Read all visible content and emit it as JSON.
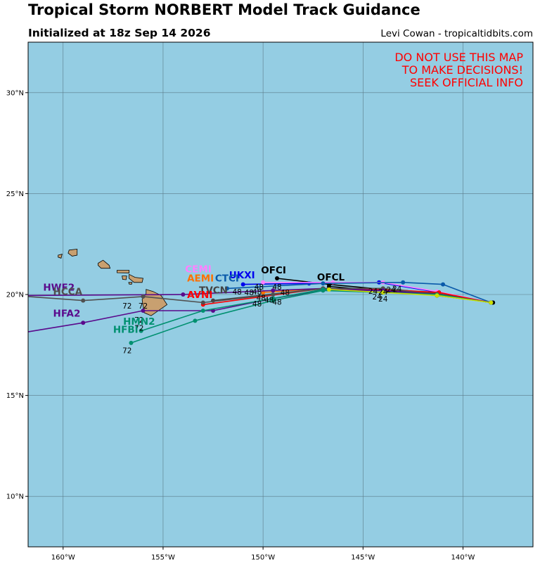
{
  "title": "Tropical Storm NORBERT Model Track Guidance",
  "subtitle": "Initialized at 18z Sep 14 2026",
  "credit": "Levi Cowan - tropicaltidbits.com",
  "warning": [
    "DO NOT USE THIS MAP",
    "TO MAKE DECISIONS!",
    "SEEK OFFICIAL INFO"
  ],
  "colors": {
    "ocean": "#94cde3",
    "land": "#c8a070",
    "warning": "#ff0000"
  },
  "map": {
    "lon_range": [
      -161.75,
      -136.5
    ],
    "lat_range": [
      7.5,
      32.5
    ],
    "lon_ticks": [
      -160,
      -155,
      -150,
      -145,
      -140
    ],
    "lon_tick_labels": [
      "160°W",
      "155°W",
      "150°W",
      "145°W",
      "140°W"
    ],
    "lat_ticks": [
      10,
      15,
      20,
      25,
      30
    ],
    "lat_tick_labels": [
      "10°N",
      "15°N",
      "20°N",
      "25°N",
      "30°N"
    ],
    "grid": true
  },
  "islands": [
    {
      "name": "Kauai",
      "points": [
        [
          -159.7,
          22.2
        ],
        [
          -159.3,
          22.25
        ],
        [
          -159.3,
          21.95
        ],
        [
          -159.55,
          21.9
        ],
        [
          -159.75,
          22.05
        ]
      ]
    },
    {
      "name": "Niihau",
      "points": [
        [
          -160.25,
          21.95
        ],
        [
          -160.05,
          22.0
        ],
        [
          -160.1,
          21.8
        ],
        [
          -160.25,
          21.85
        ]
      ]
    },
    {
      "name": "Oahu",
      "points": [
        [
          -158.25,
          21.55
        ],
        [
          -158.0,
          21.7
        ],
        [
          -157.7,
          21.45
        ],
        [
          -157.65,
          21.3
        ],
        [
          -158.1,
          21.3
        ],
        [
          -158.25,
          21.45
        ]
      ]
    },
    {
      "name": "Molokai",
      "points": [
        [
          -157.3,
          21.2
        ],
        [
          -156.7,
          21.2
        ],
        [
          -156.7,
          21.07
        ],
        [
          -157.3,
          21.08
        ]
      ]
    },
    {
      "name": "Lanai",
      "points": [
        [
          -157.05,
          20.92
        ],
        [
          -156.82,
          20.92
        ],
        [
          -156.85,
          20.73
        ],
        [
          -157.02,
          20.75
        ]
      ]
    },
    {
      "name": "Kahoolawe",
      "points": [
        [
          -156.72,
          20.6
        ],
        [
          -156.55,
          20.6
        ],
        [
          -156.58,
          20.5
        ],
        [
          -156.7,
          20.52
        ]
      ]
    },
    {
      "name": "Maui",
      "points": [
        [
          -156.7,
          21.0
        ],
        [
          -156.4,
          20.85
        ],
        [
          -156.0,
          20.8
        ],
        [
          -156.05,
          20.6
        ],
        [
          -156.45,
          20.6
        ],
        [
          -156.7,
          20.8
        ]
      ]
    },
    {
      "name": "Hawaii",
      "points": [
        [
          -155.85,
          20.25
        ],
        [
          -155.5,
          20.15
        ],
        [
          -155.1,
          19.95
        ],
        [
          -154.8,
          19.5
        ],
        [
          -155.6,
          18.95
        ],
        [
          -155.95,
          19.1
        ],
        [
          -156.05,
          19.75
        ],
        [
          -155.85,
          20.05
        ]
      ]
    }
  ],
  "tracks": [
    {
      "name": "OFCI",
      "color": "#000000",
      "points": [
        [
          -138.5,
          19.6
        ],
        [
          -141.3,
          20.0
        ],
        [
          -146.7,
          20.5
        ],
        [
          -149.3,
          20.8
        ]
      ]
    },
    {
      "name": "OFCL",
      "color": "#000000",
      "points": [
        [
          -138.5,
          19.6
        ],
        [
          -141.3,
          19.95
        ],
        [
          -146.7,
          20.4
        ]
      ]
    },
    {
      "name": "UKXI",
      "color": "#0000ee",
      "points": [
        [
          -138.6,
          19.6
        ],
        [
          -141.2,
          20.1
        ],
        [
          -144.2,
          20.6
        ],
        [
          -147.7,
          20.55
        ],
        [
          -151.0,
          20.5
        ]
      ]
    },
    {
      "name": "CEMI",
      "color": "#ff80ff",
      "points": [
        [
          -138.6,
          19.6
        ],
        [
          -141.3,
          20.15
        ],
        [
          -144.0,
          20.6
        ],
        [
          -146.5,
          20.6
        ],
        [
          -150.0,
          20.6
        ]
      ]
    },
    {
      "name": "AEMI",
      "color": "#ff7000",
      "points": [
        [
          -138.6,
          19.6
        ],
        [
          -141.3,
          20.05
        ],
        [
          -144.0,
          20.3
        ],
        [
          -147.0,
          20.3
        ],
        [
          -150.0,
          20.1
        ]
      ]
    },
    {
      "name": "CTCI",
      "color": "#0a5aaa",
      "points": [
        [
          -138.6,
          19.6
        ],
        [
          -141.0,
          20.5
        ],
        [
          -143.0,
          20.6
        ],
        [
          -147.0,
          20.55
        ],
        [
          -151.8,
          20.3
        ]
      ]
    },
    {
      "name": "TVCN",
      "color": "#444444",
      "points": [
        [
          -138.6,
          19.6
        ],
        [
          -141.3,
          20.05
        ],
        [
          -144.0,
          20.3
        ],
        [
          -147.0,
          20.3
        ],
        [
          -152.5,
          19.7
        ]
      ]
    },
    {
      "name": "AVNI",
      "color": "#ff0000",
      "points": [
        [
          -138.6,
          19.6
        ],
        [
          -141.2,
          20.1
        ],
        [
          -144.0,
          20.25
        ],
        [
          -147.0,
          20.3
        ],
        [
          -153.0,
          19.5
        ]
      ]
    },
    {
      "name": "HWF2",
      "color": "#5a0a8c",
      "points": [
        [
          -138.6,
          19.6
        ],
        [
          -141.3,
          20.0
        ],
        [
          -144.0,
          20.2
        ],
        [
          -147.0,
          20.3
        ],
        [
          -149.5,
          20.2
        ],
        [
          -154.0,
          20.0
        ],
        [
          -161.75,
          19.95
        ]
      ]
    },
    {
      "name": "HCCA",
      "color": "#505050",
      "points": [
        [
          -138.6,
          19.6
        ],
        [
          -141.3,
          20.0
        ],
        [
          -144.0,
          20.3
        ],
        [
          -147.0,
          20.3
        ],
        [
          -149.5,
          20.0
        ],
        [
          -153.0,
          19.6
        ],
        [
          -156.0,
          19.9
        ],
        [
          -159.0,
          19.7
        ],
        [
          -161.75,
          19.9
        ]
      ]
    },
    {
      "name": "HFA2",
      "color": "#5a0a8c",
      "points": [
        [
          -138.6,
          19.6
        ],
        [
          -141.3,
          20.0
        ],
        [
          -144.0,
          20.2
        ],
        [
          -147.0,
          20.2
        ],
        [
          -149.5,
          19.8
        ],
        [
          -152.5,
          19.2
        ],
        [
          -156.0,
          19.2
        ],
        [
          -159.0,
          18.6
        ],
        [
          -161.75,
          18.15
        ]
      ]
    },
    {
      "name": "HMN2",
      "color": "#009070",
      "points": [
        [
          -138.6,
          19.6
        ],
        [
          -141.3,
          20.0
        ],
        [
          -144.0,
          20.1
        ],
        [
          -147.0,
          20.25
        ],
        [
          -149.5,
          19.8
        ],
        [
          -153.0,
          19.2
        ],
        [
          -156.1,
          18.2
        ]
      ]
    },
    {
      "name": "HFBI",
      "color": "#009070",
      "points": [
        [
          -138.6,
          19.6
        ],
        [
          -141.3,
          20.0
        ],
        [
          -144.0,
          20.1
        ],
        [
          -147.0,
          20.2
        ],
        [
          -149.5,
          19.7
        ],
        [
          -153.4,
          18.7
        ],
        [
          -156.6,
          17.6
        ]
      ]
    },
    {
      "name": "OFCL-YL",
      "color": "#ccdd00",
      "points": [
        [
          -138.6,
          19.6
        ],
        [
          -141.3,
          19.95
        ],
        [
          -144.0,
          20.1
        ],
        [
          -146.7,
          20.25
        ]
      ]
    }
  ],
  "model_labels": [
    {
      "text": "OFCI",
      "color": "#000000",
      "lon": -150.1,
      "lat": 21.05
    },
    {
      "text": "OFCL",
      "color": "#000000",
      "lon": -147.3,
      "lat": 20.7
    },
    {
      "text": "UKXI",
      "color": "#0000ee",
      "lon": -151.7,
      "lat": 20.8
    },
    {
      "text": "CEMI",
      "color": "#ff80ff",
      "lon": -153.9,
      "lat": 21.1
    },
    {
      "text": "AEMI",
      "color": "#ff7000",
      "lon": -153.8,
      "lat": 20.65
    },
    {
      "text": "CTCI",
      "color": "#0a5aaa",
      "lon": -152.4,
      "lat": 20.65
    },
    {
      "text": "TVCN",
      "color": "#444444",
      "lon": -153.2,
      "lat": 20.05
    },
    {
      "text": "AVNI",
      "color": "#ff0000",
      "lon": -153.8,
      "lat": 19.82
    },
    {
      "text": "HWF2",
      "color": "#5a0a8c",
      "lon": -161.0,
      "lat": 20.2
    },
    {
      "text": "HCCA",
      "color": "#505050",
      "lon": -160.5,
      "lat": 19.98
    },
    {
      "text": "HFA2",
      "color": "#5a0a8c",
      "lon": -160.5,
      "lat": 18.9
    },
    {
      "text": "HMN2",
      "color": "#009070",
      "lon": -157.0,
      "lat": 18.5
    },
    {
      "text": "HFBI",
      "color": "#009070",
      "lon": -157.5,
      "lat": 18.1
    }
  ],
  "hour_labels": [
    {
      "text": "72",
      "lon": -156.8,
      "lat": 19.3
    },
    {
      "text": "72",
      "lon": -156.0,
      "lat": 19.3
    },
    {
      "text": "72",
      "lon": -156.2,
      "lat": 18.6
    },
    {
      "text": "72",
      "lon": -156.2,
      "lat": 18.2
    },
    {
      "text": "72",
      "lon": -156.8,
      "lat": 17.1
    },
    {
      "text": "48",
      "lon": -151.3,
      "lat": 20.0
    },
    {
      "text": "48",
      "lon": -150.7,
      "lat": 19.97
    },
    {
      "text": "48",
      "lon": -150.3,
      "lat": 20.0
    },
    {
      "text": "48",
      "lon": -149.3,
      "lat": 20.25
    },
    {
      "text": "48",
      "lon": -148.9,
      "lat": 19.97
    },
    {
      "text": "48",
      "lon": -150.2,
      "lat": 20.25
    },
    {
      "text": "48",
      "lon": -150.1,
      "lat": 19.7
    },
    {
      "text": "48",
      "lon": -149.7,
      "lat": 19.6
    },
    {
      "text": "48",
      "lon": -150.3,
      "lat": 19.4
    },
    {
      "text": "48",
      "lon": -149.3,
      "lat": 19.5
    },
    {
      "text": "24",
      "lon": -144.5,
      "lat": 20.03
    },
    {
      "text": "24",
      "lon": -144.0,
      "lat": 20.0
    },
    {
      "text": "24",
      "lon": -143.6,
      "lat": 20.1
    },
    {
      "text": "24",
      "lon": -144.3,
      "lat": 19.75
    },
    {
      "text": "24",
      "lon": -144.0,
      "lat": 19.65
    },
    {
      "text": "24",
      "lon": -143.3,
      "lat": 20.15
    }
  ]
}
